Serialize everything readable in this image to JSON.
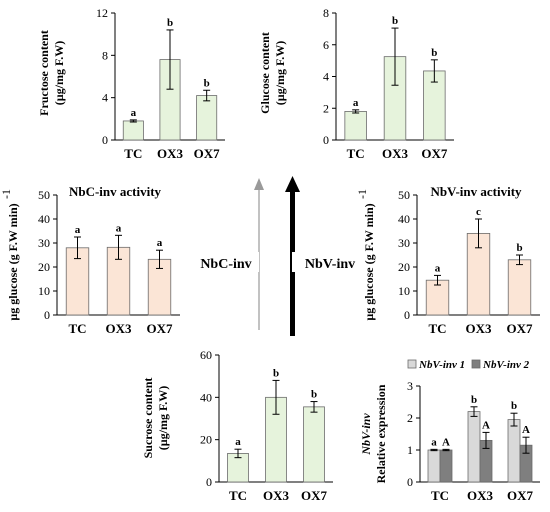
{
  "center_labels": {
    "nbc_inv": "NbC-inv",
    "nbv_inv": "NbV-inv"
  },
  "chart_data": [
    {
      "id": "fructose",
      "type": "bar",
      "title": "",
      "ylabel_lines": [
        "Fructose content",
        "(µg/mg F.W)"
      ],
      "categories": [
        "TC",
        "OX3",
        "OX7"
      ],
      "values": [
        1.8,
        7.6,
        4.2
      ],
      "errors": [
        0.1,
        2.8,
        0.5
      ],
      "significance": [
        "a",
        "b",
        "b"
      ],
      "ylim": [
        0,
        12
      ],
      "yticks": [
        0,
        4,
        8,
        12
      ],
      "color": "#e6f3dc"
    },
    {
      "id": "glucose",
      "type": "bar",
      "title": "",
      "ylabel_lines": [
        "Glucose content",
        "(µg/mg F.W)"
      ],
      "categories": [
        "TC",
        "OX3",
        "OX7"
      ],
      "values": [
        1.8,
        5.25,
        4.35
      ],
      "errors": [
        0.1,
        1.8,
        0.7
      ],
      "significance": [
        "a",
        "b",
        "b"
      ],
      "ylim": [
        0,
        8
      ],
      "yticks": [
        0,
        2,
        4,
        6,
        8
      ],
      "color": "#e6f3dc"
    },
    {
      "id": "nbc",
      "type": "bar",
      "title": "NbC-inv activity",
      "ylabel_lines": [
        "µg glucose (g F.W min)",
        "-1"
      ],
      "categories": [
        "TC",
        "OX3",
        "OX7"
      ],
      "values": [
        28,
        28.2,
        23.2
      ],
      "errors": [
        4.5,
        5.0,
        3.8
      ],
      "significance": [
        "a",
        "a",
        "a"
      ],
      "ylim": [
        0,
        50
      ],
      "yticks": [
        0,
        10,
        20,
        30,
        40,
        50
      ],
      "color": "#fbe5d6"
    },
    {
      "id": "nbv",
      "type": "bar",
      "title": "NbV-inv activity",
      "ylabel_lines": [
        "µg glucose (g F.W min)",
        "-1"
      ],
      "categories": [
        "TC",
        "OX3",
        "OX7"
      ],
      "values": [
        14.5,
        34,
        23
      ],
      "errors": [
        2,
        6,
        2
      ],
      "significance": [
        "a",
        "c",
        "b"
      ],
      "ylim": [
        0,
        50
      ],
      "yticks": [
        0,
        10,
        20,
        30,
        40,
        50
      ],
      "color": "#fbe5d6"
    },
    {
      "id": "sucrose",
      "type": "bar",
      "title": "",
      "ylabel_lines": [
        "Sucrose content",
        "(µg/mg F.W)"
      ],
      "categories": [
        "TC",
        "OX3",
        "OX7"
      ],
      "values": [
        13.5,
        40,
        35.5
      ],
      "errors": [
        2,
        8,
        2.5
      ],
      "significance": [
        "a",
        "b",
        "b"
      ],
      "ylim": [
        0,
        60
      ],
      "yticks": [
        0,
        20,
        40,
        60
      ],
      "color": "#e6f3dc"
    },
    {
      "id": "expression",
      "type": "bar",
      "title": "",
      "ylabel_lines": [
        "NbV-inv",
        "Relative expression"
      ],
      "categories": [
        "TC",
        "OX3",
        "OX7"
      ],
      "series": [
        {
          "name": "NbV-inv 1",
          "values": [
            1.0,
            2.2,
            1.95
          ],
          "errors": [
            0.02,
            0.15,
            0.2
          ],
          "significance": [
            "a",
            "b",
            "b"
          ],
          "color": "#d9d9d9"
        },
        {
          "name": "NbV-inv 2",
          "values": [
            1.0,
            1.3,
            1.15
          ],
          "errors": [
            0.02,
            0.25,
            0.25
          ],
          "significance": [
            "A",
            "A",
            "A"
          ],
          "color": "#7f7f7f"
        }
      ],
      "ylim": [
        0,
        3
      ],
      "yticks": [
        0,
        1,
        2,
        3
      ],
      "legend_position": "top"
    }
  ]
}
